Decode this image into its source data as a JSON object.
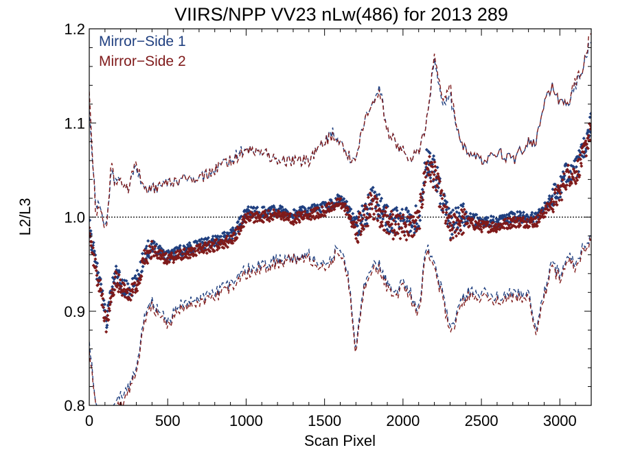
{
  "chart_data": {
    "type": "scatter",
    "title": "VIIRS/NPP VV23 nLw(486) for 2013 289",
    "xlabel": "Scan Pixel",
    "ylabel": "L2/L3",
    "xlim": [
      0,
      3200
    ],
    "ylim": [
      0.8,
      1.2
    ],
    "x_ticks": [
      0,
      500,
      1000,
      1500,
      2000,
      2500,
      3000
    ],
    "x_tick_labels": [
      "0",
      "500",
      "1000",
      "1500",
      "2000",
      "2500",
      "3000"
    ],
    "y_ticks": [
      0.8,
      0.9,
      1.0,
      1.1,
      1.2
    ],
    "y_tick_labels": [
      "0.8",
      "0.9",
      "1.0",
      "1.1",
      "1.2"
    ],
    "reference_line": 1.0,
    "legend_position": "top-left",
    "series": [
      {
        "name": "Mirror−Side 1",
        "color": "#1f3f7f",
        "mean_x": [
          0,
          40,
          80,
          110,
          140,
          170,
          200,
          250,
          300,
          350,
          400,
          500,
          600,
          700,
          800,
          900,
          950,
          1000,
          1100,
          1200,
          1300,
          1400,
          1500,
          1550,
          1600,
          1650,
          1700,
          1750,
          1800,
          1850,
          1900,
          1950,
          2000,
          2050,
          2100,
          2150,
          2200,
          2250,
          2300,
          2350,
          2400,
          2500,
          2600,
          2700,
          2800,
          2850,
          2900,
          2950,
          3000,
          3050,
          3100,
          3150,
          3200
        ],
        "mean_y": [
          0.99,
          0.95,
          0.92,
          0.89,
          0.92,
          0.94,
          0.93,
          0.92,
          0.93,
          0.96,
          0.97,
          0.96,
          0.965,
          0.97,
          0.975,
          0.98,
          0.99,
          1.005,
          1.005,
          1.007,
          1.003,
          1.007,
          1.01,
          1.015,
          1.02,
          1.01,
          0.99,
          1.0,
          1.02,
          1.01,
          1.0,
          0.995,
          0.995,
          0.995,
          1.0,
          1.06,
          1.05,
          1.02,
          0.99,
          1.0,
          1.0,
          0.995,
          0.995,
          1.0,
          1.0,
          1.0,
          1.01,
          1.02,
          1.03,
          1.05,
          1.05,
          1.07,
          1.1
        ],
        "upper": [
          1.11,
          1.02,
          1.0,
          0.99,
          1.05,
          1.035,
          1.04,
          1.03,
          1.055,
          1.03,
          1.03,
          1.035,
          1.04,
          1.04,
          1.05,
          1.06,
          1.07,
          1.07,
          1.07,
          1.06,
          1.06,
          1.06,
          1.08,
          1.09,
          1.08,
          1.065,
          1.06,
          1.1,
          1.12,
          1.14,
          1.09,
          1.08,
          1.07,
          1.06,
          1.07,
          1.1,
          1.17,
          1.12,
          1.13,
          1.09,
          1.07,
          1.06,
          1.07,
          1.06,
          1.08,
          1.08,
          1.12,
          1.14,
          1.12,
          1.12,
          1.14,
          1.16,
          1.19
        ],
        "lower": [
          0.87,
          0.8,
          0.78,
          0.78,
          0.79,
          0.8,
          0.81,
          0.82,
          0.84,
          0.89,
          0.91,
          0.89,
          0.91,
          0.915,
          0.92,
          0.93,
          0.94,
          0.945,
          0.95,
          0.955,
          0.955,
          0.96,
          0.95,
          0.96,
          0.97,
          0.94,
          0.86,
          0.93,
          0.95,
          0.95,
          0.93,
          0.92,
          0.93,
          0.92,
          0.9,
          0.97,
          0.95,
          0.92,
          0.88,
          0.9,
          0.92,
          0.92,
          0.915,
          0.92,
          0.92,
          0.88,
          0.92,
          0.95,
          0.94,
          0.96,
          0.95,
          0.97,
          0.98
        ]
      },
      {
        "name": "Mirror−Side 2",
        "color": "#7f1a1a",
        "mean_x": [
          0,
          40,
          80,
          110,
          140,
          170,
          200,
          250,
          300,
          350,
          400,
          500,
          600,
          700,
          800,
          900,
          950,
          1000,
          1100,
          1200,
          1300,
          1400,
          1500,
          1550,
          1600,
          1650,
          1700,
          1750,
          1800,
          1850,
          1900,
          1950,
          2000,
          2050,
          2100,
          2150,
          2200,
          2250,
          2300,
          2350,
          2400,
          2500,
          2600,
          2700,
          2800,
          2850,
          2900,
          2950,
          3000,
          3050,
          3100,
          3150,
          3200
        ],
        "mean_y": [
          0.985,
          0.945,
          0.915,
          0.885,
          0.915,
          0.935,
          0.925,
          0.915,
          0.925,
          0.955,
          0.965,
          0.955,
          0.96,
          0.965,
          0.97,
          0.975,
          0.985,
          1.0,
          1.0,
          1.003,
          0.998,
          1.003,
          1.006,
          1.012,
          1.015,
          1.005,
          0.985,
          0.995,
          1.015,
          1.005,
          0.995,
          0.99,
          0.99,
          0.99,
          0.995,
          1.055,
          1.045,
          1.015,
          0.985,
          0.995,
          0.995,
          0.99,
          0.99,
          0.995,
          0.995,
          0.995,
          1.005,
          1.015,
          1.025,
          1.045,
          1.045,
          1.065,
          1.095
        ],
        "upper": [
          1.13,
          1.01,
          1.0,
          0.985,
          1.06,
          1.03,
          1.04,
          1.03,
          1.06,
          1.03,
          1.03,
          1.035,
          1.04,
          1.04,
          1.05,
          1.06,
          1.065,
          1.07,
          1.07,
          1.06,
          1.06,
          1.06,
          1.08,
          1.085,
          1.08,
          1.065,
          1.06,
          1.1,
          1.12,
          1.135,
          1.09,
          1.08,
          1.07,
          1.06,
          1.07,
          1.1,
          1.175,
          1.125,
          1.14,
          1.09,
          1.07,
          1.06,
          1.07,
          1.06,
          1.08,
          1.08,
          1.12,
          1.14,
          1.12,
          1.12,
          1.145,
          1.16,
          1.2
        ],
        "lower": [
          0.86,
          0.8,
          0.77,
          0.77,
          0.785,
          0.795,
          0.8,
          0.815,
          0.835,
          0.885,
          0.905,
          0.885,
          0.905,
          0.91,
          0.915,
          0.925,
          0.935,
          0.94,
          0.945,
          0.95,
          0.955,
          0.955,
          0.945,
          0.955,
          0.965,
          0.935,
          0.855,
          0.925,
          0.945,
          0.945,
          0.925,
          0.915,
          0.925,
          0.915,
          0.895,
          0.965,
          0.945,
          0.915,
          0.875,
          0.895,
          0.915,
          0.915,
          0.91,
          0.915,
          0.915,
          0.875,
          0.915,
          0.945,
          0.935,
          0.955,
          0.945,
          0.965,
          0.975
        ]
      }
    ]
  }
}
